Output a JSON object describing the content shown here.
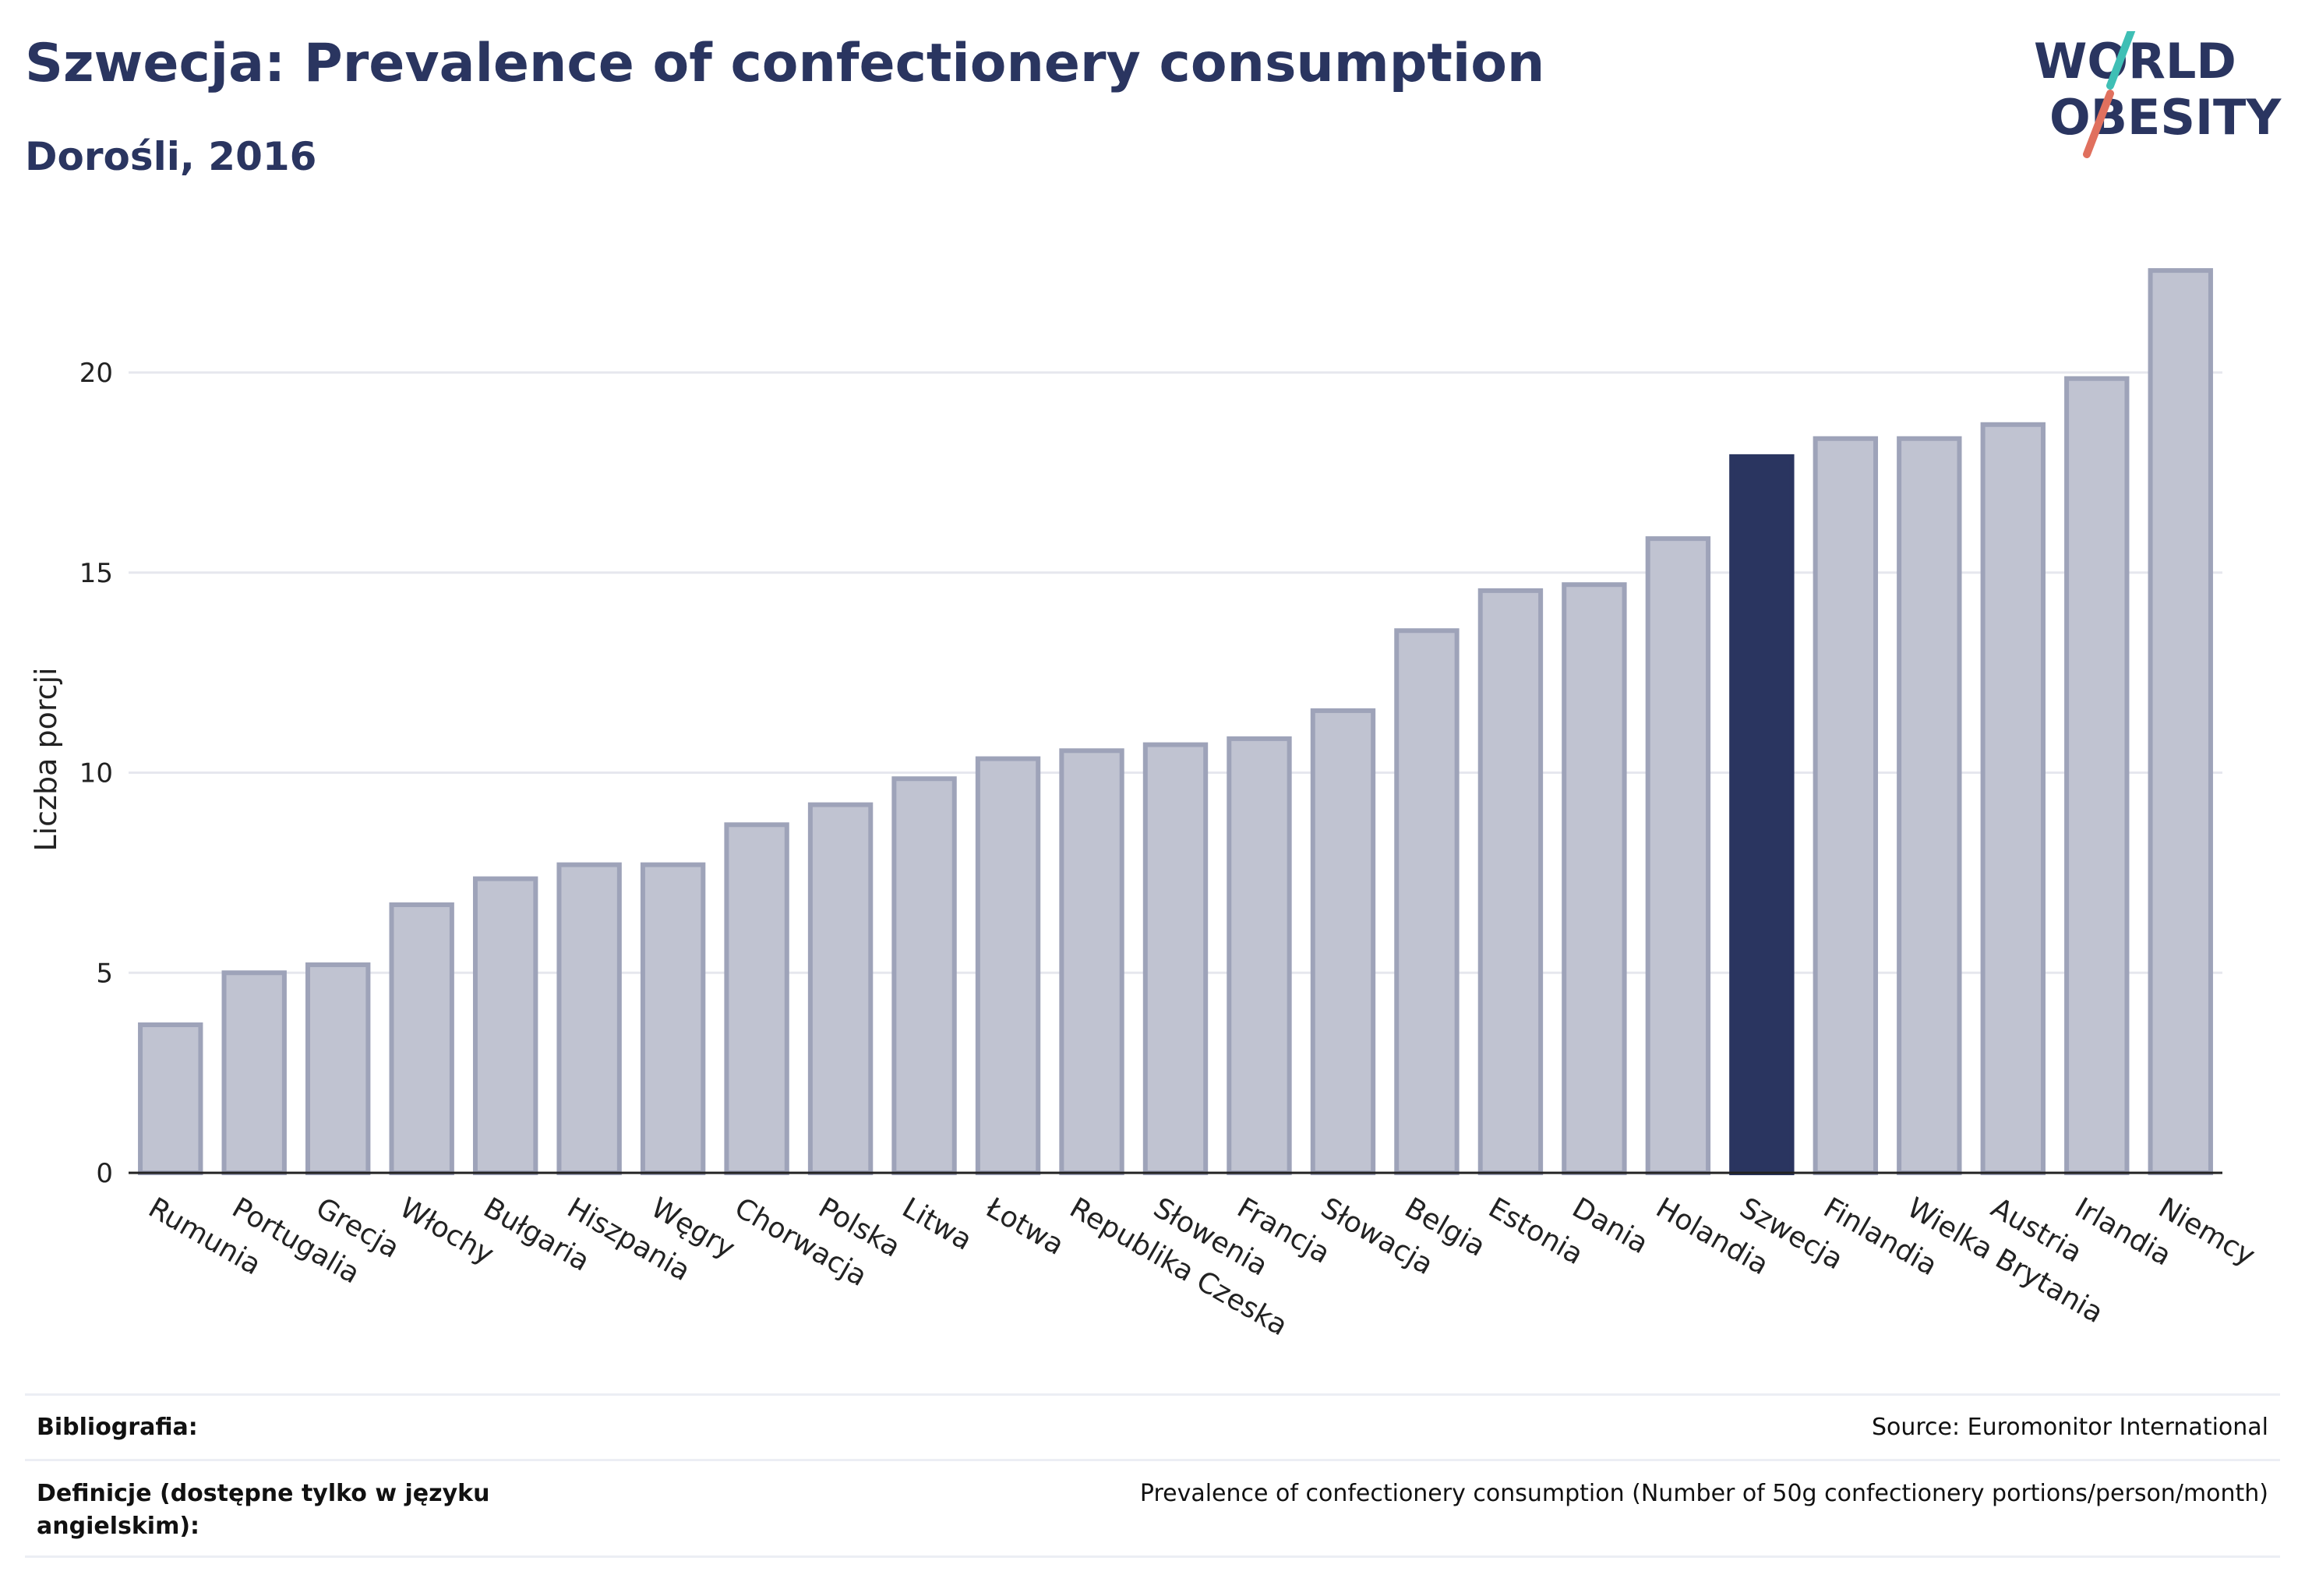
{
  "header": {
    "title": "Szwecja: Prevalence of confectionery consumption",
    "subtitle": "Dorośli, 2016"
  },
  "logo": {
    "line1": "WORLD",
    "line2": "OBESITY",
    "colors": {
      "text": "#2a3560",
      "slash_top": "#3fbfb5",
      "slash_bottom": "#e0705e"
    }
  },
  "colors": {
    "bar": "#c0c3d1",
    "bar_border": "#9ea3b9",
    "highlight": "#2a3560",
    "grid": "#e6e7ee",
    "axis": "#222222"
  },
  "chart_data": {
    "type": "bar",
    "ylabel": "Liczba porcji",
    "xlabel": "",
    "ylim": [
      0,
      23
    ],
    "yticks": [
      0,
      5,
      10,
      15,
      20
    ],
    "grid": true,
    "highlight": "Szwecja",
    "categories": [
      "Rumunia",
      "Portugalia",
      "Grecja",
      "Włochy",
      "Bułgaria",
      "Hiszpania",
      "Węgry",
      "Chorwacja",
      "Polska",
      "Litwa",
      "Łotwa",
      "Republika Czeska",
      "Słowenia",
      "Francja",
      "Słowacja",
      "Belgia",
      "Estonia",
      "Dania",
      "Holandia",
      "Szwecja",
      "Finlandia",
      "Wielka Brytania",
      "Austria",
      "Irlandia",
      "Niemcy"
    ],
    "values": [
      3.7,
      5.0,
      5.2,
      6.7,
      7.35,
      7.7,
      7.7,
      8.7,
      9.2,
      9.85,
      10.35,
      10.55,
      10.7,
      10.85,
      11.55,
      13.55,
      14.55,
      14.7,
      15.85,
      17.9,
      18.35,
      18.35,
      18.7,
      19.85,
      22.55
    ]
  },
  "footer": {
    "bibliography_label": "Bibliografia:",
    "bibliography_value": "Source: Euromonitor International",
    "definitions_label_1": "Definicje (dostępne tylko w języku",
    "definitions_label_2": "angielskim):",
    "definitions_value": "Prevalence of confectionery consumption (Number of 50g confectionery portions/person/month)"
  }
}
